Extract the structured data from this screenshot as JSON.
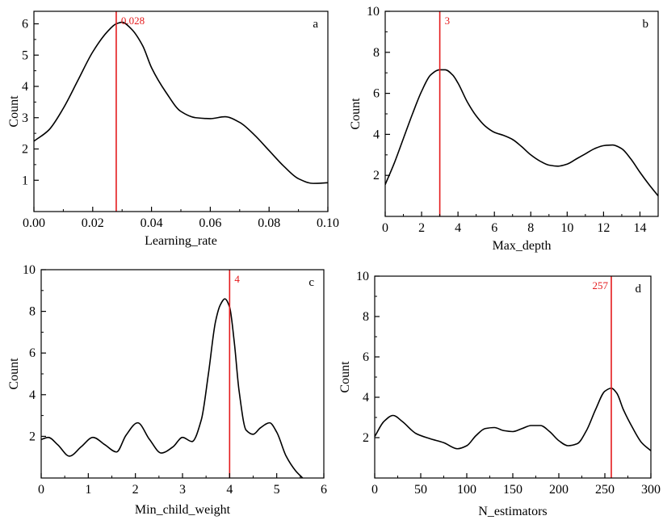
{
  "chart_data": [
    {
      "type": "line",
      "panel_label": "a",
      "xlabel": "Learning_rate",
      "ylabel": "Count",
      "xlim": [
        0,
        0.1
      ],
      "ylim": [
        0,
        6.4
      ],
      "xticks": [
        0,
        0.02,
        0.04,
        0.06,
        0.08,
        0.1
      ],
      "xtick_labels": [
        "0.00",
        "0.02",
        "0.04",
        "0.06",
        "0.08",
        "0.10"
      ],
      "yticks": [
        1,
        2,
        3,
        4,
        5,
        6
      ],
      "ytick_labels": [
        "1",
        "2",
        "3",
        "4",
        "5",
        "6"
      ],
      "marker_value": 0.028,
      "marker_label": "0.028",
      "marker_label_side": "right",
      "series": [
        {
          "x": [
            0,
            0.005,
            0.01,
            0.015,
            0.02,
            0.025,
            0.028,
            0.03,
            0.033,
            0.037,
            0.04,
            0.045,
            0.05,
            0.055,
            0.06,
            0.065,
            0.07,
            0.075,
            0.08,
            0.085,
            0.09,
            0.095,
            0.1
          ],
          "y": [
            2.25,
            2.6,
            3.3,
            4.2,
            5.1,
            5.75,
            6.0,
            6.05,
            5.85,
            5.3,
            4.6,
            3.8,
            3.2,
            3.0,
            2.97,
            3.03,
            2.85,
            2.45,
            1.95,
            1.45,
            1.05,
            0.9,
            0.92
          ]
        }
      ]
    },
    {
      "type": "line",
      "panel_label": "b",
      "xlabel": "Max_depth",
      "ylabel": "Count",
      "xlim": [
        0,
        15
      ],
      "ylim": [
        0,
        10
      ],
      "xticks": [
        0,
        2,
        4,
        6,
        8,
        10,
        12,
        14
      ],
      "xtick_labels": [
        "0",
        "2",
        "4",
        "6",
        "8",
        "10",
        "12",
        "14"
      ],
      "yticks": [
        2,
        4,
        6,
        8,
        10
      ],
      "ytick_labels": [
        "2",
        "4",
        "6",
        "8",
        "10"
      ],
      "marker_value": 3,
      "marker_label": "3",
      "marker_label_side": "right",
      "series": [
        {
          "x": [
            0,
            0.5,
            1,
            1.5,
            2,
            2.5,
            3,
            3.3,
            3.7,
            4,
            4.5,
            5,
            5.5,
            6,
            6.5,
            7,
            7.5,
            8,
            8.5,
            9,
            9.5,
            10,
            10.5,
            11,
            11.5,
            12,
            12.5,
            13,
            13.5,
            14,
            14.5,
            15
          ],
          "y": [
            1.55,
            2.6,
            3.8,
            5.0,
            6.1,
            6.9,
            7.15,
            7.15,
            6.9,
            6.5,
            5.6,
            4.9,
            4.4,
            4.1,
            3.95,
            3.75,
            3.4,
            3.0,
            2.7,
            2.5,
            2.45,
            2.55,
            2.8,
            3.05,
            3.3,
            3.45,
            3.48,
            3.3,
            2.8,
            2.15,
            1.55,
            1.0
          ]
        }
      ]
    },
    {
      "type": "line",
      "panel_label": "c",
      "xlabel": "Min_child_weight",
      "ylabel": "Count",
      "xlim": [
        0,
        6
      ],
      "ylim": [
        0,
        10
      ],
      "xticks": [
        0,
        1,
        2,
        3,
        4,
        5,
        6
      ],
      "xtick_labels": [
        "0",
        "1",
        "2",
        "3",
        "4",
        "5",
        "6"
      ],
      "yticks": [
        2,
        4,
        6,
        8,
        10
      ],
      "ytick_labels": [
        "2",
        "4",
        "6",
        "8",
        "10"
      ],
      "marker_value": 4,
      "marker_label": "4",
      "marker_label_side": "right",
      "series": [
        {
          "x": [
            0,
            0.15,
            0.35,
            0.6,
            0.85,
            1.1,
            1.35,
            1.6,
            1.8,
            2.05,
            2.3,
            2.55,
            2.8,
            3.0,
            3.2,
            3.4,
            3.55,
            3.7,
            3.8,
            3.9,
            4.0,
            4.1,
            4.2,
            4.35,
            4.5,
            4.65,
            4.85,
            5.0,
            5.2,
            5.4,
            5.55
          ],
          "y": [
            1.85,
            1.95,
            1.6,
            1.05,
            1.5,
            1.95,
            1.6,
            1.25,
            2.05,
            2.65,
            1.85,
            1.2,
            1.5,
            1.95,
            1.75,
            2.8,
            5.0,
            7.5,
            8.3,
            8.6,
            8.2,
            6.5,
            4.2,
            2.3,
            2.1,
            2.4,
            2.65,
            2.2,
            1.05,
            0.35,
            0.0
          ]
        }
      ]
    },
    {
      "type": "line",
      "panel_label": "d",
      "xlabel": "N_estimators",
      "ylabel": "Count",
      "xlim": [
        0,
        300
      ],
      "ylim": [
        0,
        10
      ],
      "xticks": [
        0,
        50,
        100,
        150,
        200,
        250,
        300
      ],
      "xtick_labels": [
        "0",
        "50",
        "100",
        "150",
        "200",
        "250",
        "300"
      ],
      "yticks": [
        2,
        4,
        6,
        8,
        10
      ],
      "ytick_labels": [
        "2",
        "4",
        "6",
        "8",
        "10"
      ],
      "marker_value": 257,
      "marker_label": "257",
      "marker_label_side": "left",
      "series": [
        {
          "x": [
            0,
            10,
            20,
            30,
            45,
            60,
            75,
            90,
            100,
            110,
            120,
            130,
            140,
            150,
            160,
            170,
            180,
            190,
            200,
            210,
            220,
            230,
            240,
            250,
            257,
            263,
            270,
            280,
            290,
            300
          ],
          "y": [
            2.05,
            2.8,
            3.1,
            2.8,
            2.2,
            1.95,
            1.75,
            1.45,
            1.6,
            2.1,
            2.45,
            2.5,
            2.35,
            2.3,
            2.45,
            2.6,
            2.6,
            2.3,
            1.85,
            1.6,
            1.7,
            2.35,
            3.4,
            4.3,
            4.45,
            4.2,
            3.4,
            2.5,
            1.75,
            1.35
          ]
        }
      ]
    }
  ],
  "colors": {
    "axis": "#000000",
    "curve": "#000000",
    "marker": "#e41a1c"
  }
}
